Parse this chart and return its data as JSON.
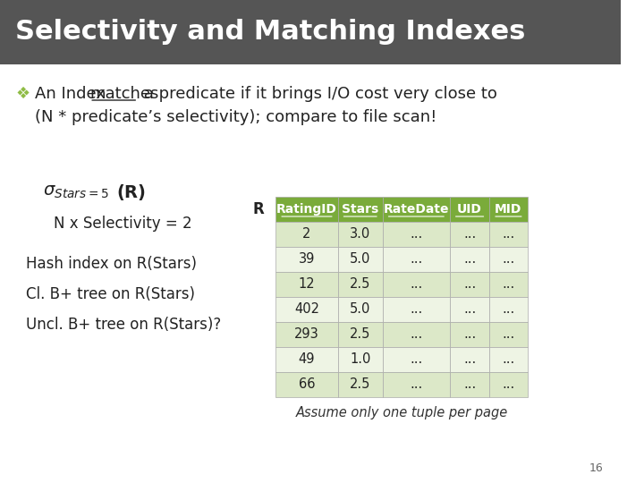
{
  "title": "Selectivity and Matching Indexes",
  "title_bg": "#555555",
  "title_color": "#ffffff",
  "title_fontsize": 22,
  "bg_color": "#ffffff",
  "bullet_color": "#8fbc45",
  "line2": "(N * predicate’s selectivity); compare to file scan!",
  "formula_label": "N x Selectivity = 2",
  "index_labels": [
    "Hash index on R(Stars)",
    "Cl. B+ tree on R(Stars)",
    "Uncl. B+ tree on R(Stars)?"
  ],
  "table_prefix": "R",
  "table_headers": [
    "RatingID",
    "Stars",
    "RateDate",
    "UID",
    "MID"
  ],
  "table_data": [
    [
      "2",
      "3.0",
      "...",
      "...",
      "..."
    ],
    [
      "39",
      "5.0",
      "...",
      "...",
      "..."
    ],
    [
      "12",
      "2.5",
      "...",
      "...",
      "..."
    ],
    [
      "402",
      "5.0",
      "...",
      "...",
      "..."
    ],
    [
      "293",
      "2.5",
      "...",
      "...",
      "..."
    ],
    [
      "49",
      "1.0",
      "...",
      "...",
      "..."
    ],
    [
      "66",
      "2.5",
      "...",
      "...",
      "..."
    ]
  ],
  "table_header_bg": "#7aab3a",
  "table_row_bg_odd": "#dce8c8",
  "table_row_bg_even": "#eef4e4",
  "table_header_color": "#ffffff",
  "table_text_color": "#222222",
  "table_caption": "Assume only one tuple per page",
  "page_number": "16"
}
